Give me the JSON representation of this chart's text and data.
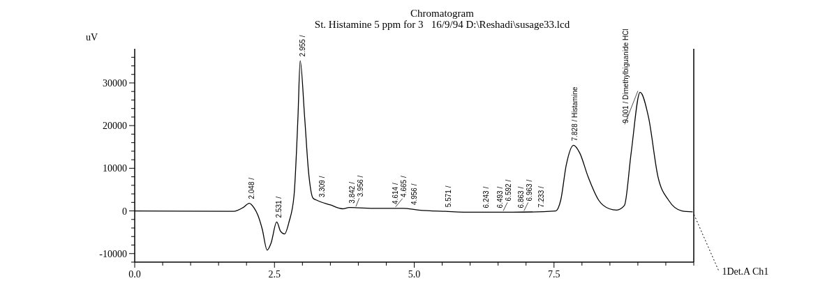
{
  "chart_data": {
    "type": "line",
    "title": "Chromatogram",
    "subtitle": "St. Histamine 5 ppm for 3   16/9/94 D:\\Reshadi\\susage33.lcd",
    "ylabel": "uV",
    "xlim": [
      0,
      10
    ],
    "ylim": [
      -12000,
      38000
    ],
    "xticks": [
      {
        "value": 0,
        "label": "0.0"
      },
      {
        "value": 0.5,
        "label": null
      },
      {
        "value": 1,
        "label": null
      },
      {
        "value": 1.5,
        "label": null
      },
      {
        "value": 2,
        "label": null
      },
      {
        "value": 2.5,
        "label": "2.5"
      },
      {
        "value": 3,
        "label": null
      },
      {
        "value": 3.5,
        "label": null
      },
      {
        "value": 4,
        "label": null
      },
      {
        "value": 4.5,
        "label": null
      },
      {
        "value": 5,
        "label": "5.0"
      },
      {
        "value": 5.5,
        "label": null
      },
      {
        "value": 6,
        "label": null
      },
      {
        "value": 6.5,
        "label": null
      },
      {
        "value": 7,
        "label": null
      },
      {
        "value": 7.5,
        "label": "7.5"
      },
      {
        "value": 8,
        "label": null
      },
      {
        "value": 8.5,
        "label": null
      },
      {
        "value": 9,
        "label": null
      },
      {
        "value": 9.5,
        "label": null
      },
      {
        "value": 10,
        "label": null
      }
    ],
    "yticks": [
      {
        "value": -12000,
        "label": null
      },
      -10000,
      {
        "value": -8000,
        "label": null
      },
      {
        "value": -6000,
        "label": null
      },
      {
        "value": -4000,
        "label": null
      },
      {
        "value": -2000,
        "label": null
      },
      0,
      {
        "value": 2000,
        "label": null
      },
      {
        "value": 4000,
        "label": null
      },
      {
        "value": 6000,
        "label": null
      },
      {
        "value": 8000,
        "label": null
      },
      10000,
      {
        "value": 12000,
        "label": null
      },
      {
        "value": 14000,
        "label": null
      },
      {
        "value": 16000,
        "label": null
      },
      {
        "value": 18000,
        "label": null
      },
      20000,
      {
        "value": 22000,
        "label": null
      },
      {
        "value": 24000,
        "label": null
      },
      {
        "value": 26000,
        "label": null
      },
      {
        "value": 28000,
        "label": null
      },
      30000,
      {
        "value": 32000,
        "label": null
      },
      {
        "value": 34000,
        "label": null
      },
      {
        "value": 36000,
        "label": null
      }
    ],
    "grid": false,
    "legend": false,
    "marker": "none",
    "line_style": "solid",
    "series": [
      {
        "name": "1Det.A Ch1",
        "color": "#000000",
        "x": [
          0,
          1.77,
          1.94,
          2.05,
          2.13,
          2.2,
          2.28,
          2.37,
          2.44,
          2.54,
          2.61,
          2.68,
          2.76,
          2.85,
          2.92,
          2.96,
          3.04,
          3.11,
          3.19,
          3.26,
          3.5,
          3.72,
          3.84,
          4.32,
          4.8,
          5.08,
          5.56,
          6.04,
          6.76,
          7.53,
          7.62,
          7.72,
          7.85,
          7.96,
          8.11,
          8.3,
          8.49,
          8.62,
          8.76,
          8.88,
          9.04,
          9.19,
          9.36,
          9.55,
          9.79,
          9.98
        ],
        "values": [
          0,
          -100,
          800,
          1800,
          800,
          -900,
          -4200,
          -9200,
          -7500,
          -2600,
          -4800,
          -5400,
          -2600,
          3600,
          21900,
          35200,
          21900,
          9100,
          3000,
          2500,
          1400,
          500,
          800,
          600,
          600,
          200,
          -100,
          -300,
          -300,
          0,
          2500,
          10800,
          15400,
          13600,
          8000,
          2500,
          500,
          200,
          1300,
          13600,
          27800,
          22000,
          8000,
          2500,
          0,
          -200
        ]
      }
    ],
    "annotations": [
      {
        "text": "2.048 /",
        "x": 2.048,
        "y": 1800
      },
      {
        "text": "2.531 /",
        "x": 2.531,
        "y": -2600
      },
      {
        "text": "2.955 /",
        "x": 2.955,
        "y": 35200
      },
      {
        "text": "3.309 /",
        "x": 3.309,
        "y": 2200
      },
      {
        "text": "3.842 /",
        "x": 3.842,
        "y": 800
      },
      {
        "text": "3.956 /",
        "x": 3.956,
        "y": 700
      },
      {
        "text": "4.614 /",
        "x": 4.614,
        "y": 600
      },
      {
        "text": "4.665 /",
        "x": 4.665,
        "y": 600
      },
      {
        "text": "4.956 /",
        "x": 4.956,
        "y": 400
      },
      {
        "text": "5.571 /",
        "x": 5.571,
        "y": -100
      },
      {
        "text": "6.243 /",
        "x": 6.243,
        "y": -300
      },
      {
        "text": "6.493 /",
        "x": 6.493,
        "y": -300
      },
      {
        "text": "6.592 /",
        "x": 6.592,
        "y": -300
      },
      {
        "text": "6.863 /",
        "x": 6.863,
        "y": -300
      },
      {
        "text": "6.963 /",
        "x": 6.963,
        "y": -300
      },
      {
        "text": "7.233 /",
        "x": 7.233,
        "y": -200
      },
      {
        "text": "7.828 / Histamine",
        "x": 7.828,
        "y": 15400
      },
      {
        "text": "9.001 / Dimethylbiguanide HCl",
        "x": 9.001,
        "y": 27800
      }
    ]
  }
}
